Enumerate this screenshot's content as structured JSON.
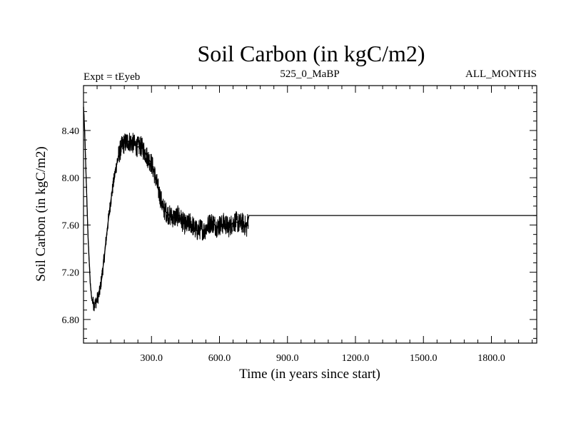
{
  "chart_data": {
    "type": "line",
    "title": "Soil Carbon (in kgC/m2)",
    "subtitle_left": "Expt = tEyeb",
    "subtitle_center": "525_0_MaBP",
    "subtitle_right": "ALL_MONTHS",
    "xlabel": "Time (in years since start)",
    "ylabel": "Soil Carbon (in kgC/m2)",
    "xlim": [
      0,
      2000
    ],
    "ylim": [
      6.6,
      8.78
    ],
    "x_ticks": [
      {
        "value": 300,
        "label": "300.0"
      },
      {
        "value": 600,
        "label": "600.0"
      },
      {
        "value": 900,
        "label": "900.0"
      },
      {
        "value": 1200,
        "label": "1200.0"
      },
      {
        "value": 1500,
        "label": "1500.0"
      },
      {
        "value": 1800,
        "label": "1800.0"
      }
    ],
    "y_ticks": [
      {
        "value": 6.8,
        "label": "6.80"
      },
      {
        "value": 7.2,
        "label": "7.20"
      },
      {
        "value": 7.6,
        "label": "7.60"
      },
      {
        "value": 8.0,
        "label": "8.00"
      },
      {
        "value": 8.4,
        "label": "8.40"
      }
    ],
    "grid": false,
    "series": [
      {
        "x": [
          0,
          5,
          10,
          15,
          20,
          25,
          30,
          35,
          40,
          45,
          50,
          55,
          60,
          70,
          80,
          90,
          100,
          110,
          120,
          130,
          140,
          150,
          160,
          170,
          180,
          190,
          200,
          210,
          220,
          230,
          240,
          250,
          260,
          270,
          280,
          290,
          300,
          310,
          320,
          330,
          340,
          350,
          360,
          370,
          380,
          390,
          400,
          410,
          420,
          430,
          440,
          450,
          460,
          470,
          480,
          490,
          500,
          510,
          520,
          530,
          540,
          550,
          560,
          570,
          580,
          590,
          600,
          610,
          620,
          630,
          640,
          650,
          660,
          670,
          680,
          690,
          700,
          710,
          720,
          730,
          2000
        ],
        "values": [
          8.6,
          8.4,
          8.1,
          7.8,
          7.5,
          7.3,
          7.1,
          7.0,
          6.95,
          6.93,
          6.93,
          6.95,
          6.97,
          7.02,
          7.15,
          7.3,
          7.48,
          7.65,
          7.8,
          7.93,
          8.05,
          8.15,
          8.22,
          8.27,
          8.29,
          8.3,
          8.31,
          8.3,
          8.29,
          8.27,
          8.26,
          8.27,
          8.25,
          8.22,
          8.18,
          8.15,
          8.12,
          8.06,
          7.98,
          7.9,
          7.83,
          7.75,
          7.72,
          7.7,
          7.68,
          7.67,
          7.66,
          7.67,
          7.68,
          7.65,
          7.62,
          7.6,
          7.6,
          7.62,
          7.6,
          7.57,
          7.55,
          7.56,
          7.57,
          7.55,
          7.57,
          7.6,
          7.62,
          7.62,
          7.6,
          7.58,
          7.6,
          7.6,
          7.62,
          7.6,
          7.58,
          7.6,
          7.62,
          7.63,
          7.62,
          7.61,
          7.62,
          7.6,
          7.58,
          7.68,
          7.68
        ]
      }
    ]
  }
}
